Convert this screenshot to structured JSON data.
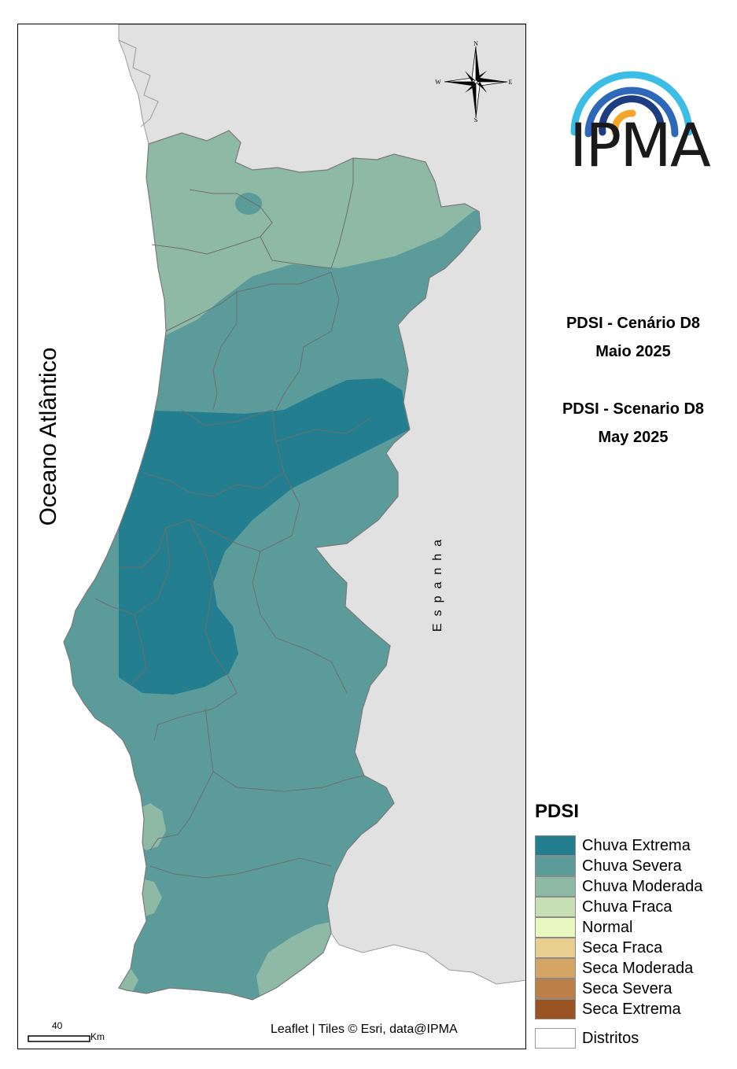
{
  "map": {
    "ocean_label": "Oceano Atlântico",
    "spain_label": "Espanha",
    "attribution": "Leaflet | Tiles © Esri, data@IPMA",
    "scale": {
      "value": "40",
      "unit": "Km"
    },
    "compass": {
      "n": "N",
      "s": "S",
      "e": "E",
      "w": "W"
    }
  },
  "logo": {
    "text": "IPMA"
  },
  "titles": {
    "pt_line1": "PDSI - Cenário D8",
    "pt_line2": "Maio 2025",
    "en_line1": "PDSI - Scenario D8",
    "en_line2": "May 2025"
  },
  "legend": {
    "title": "PDSI",
    "items": [
      {
        "label": "Chuva Extrema",
        "color": "#237f8f"
      },
      {
        "label": "Chuva Severa",
        "color": "#5b9c9b"
      },
      {
        "label": "Chuva Moderada",
        "color": "#8eb9a5"
      },
      {
        "label": "Chuva Fraca",
        "color": "#c7dfb5"
      },
      {
        "label": "Normal",
        "color": "#e9f8c0"
      },
      {
        "label": "Seca Fraca",
        "color": "#e8cf90"
      },
      {
        "label": "Seca Moderada",
        "color": "#d4a565"
      },
      {
        "label": "Seca Severa",
        "color": "#bb7f47"
      },
      {
        "label": "Seca Extrema",
        "color": "#9a5424"
      }
    ],
    "districts_label": "Distritos"
  }
}
